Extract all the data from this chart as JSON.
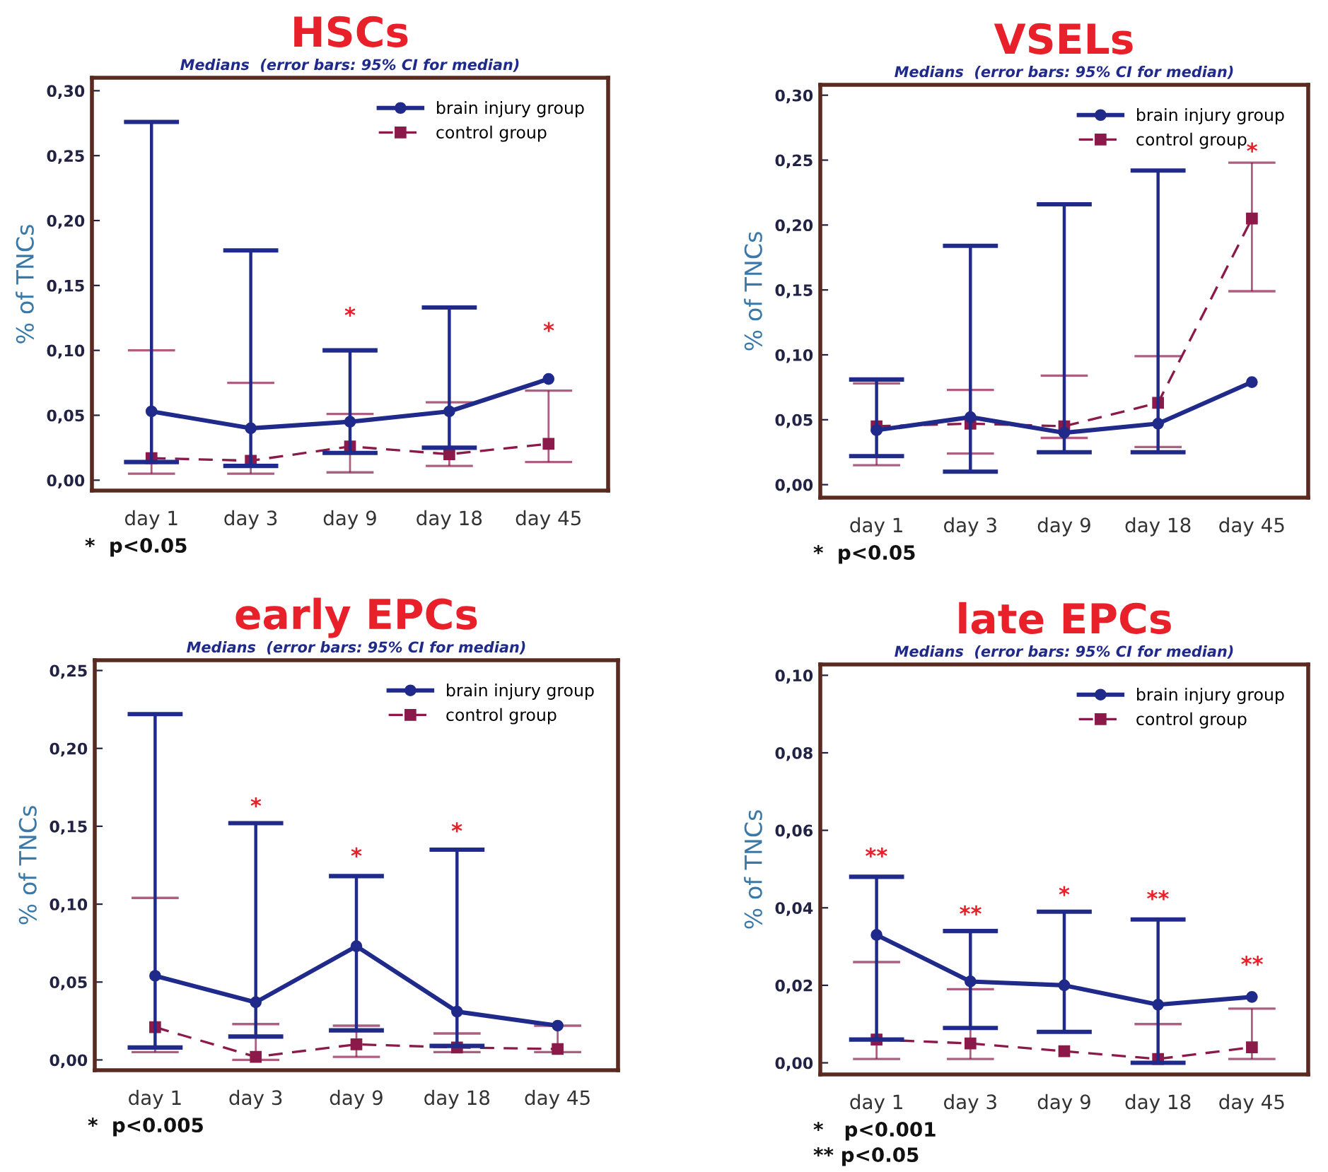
{
  "chart_data": [
    {
      "type": "line",
      "title": "HSCs",
      "subtitle": "Medians  (error bars: 95% CI for median)",
      "ylabel": "% of TNCs",
      "categories": [
        "day 1",
        "day 3",
        "day 9",
        "day 18",
        "day 45"
      ],
      "series": [
        {
          "name": "brain injury group",
          "color": "#1f2a8a",
          "marker": "circle",
          "line_style": "solid",
          "values": [
            0.053,
            0.04,
            0.045,
            0.053,
            0.078
          ],
          "errors": [
            [
              0.014,
              0.276
            ],
            [
              0.011,
              0.177
            ],
            [
              0.021,
              0.1
            ],
            [
              0.025,
              0.133
            ],
            null
          ]
        },
        {
          "name": "control group",
          "color": "#8b1a4a",
          "marker": "square",
          "line_style": "dashed",
          "values": [
            0.017,
            0.015,
            0.026,
            0.02,
            0.028
          ],
          "errors": [
            [
              0.005,
              0.1
            ],
            [
              0.005,
              0.075
            ],
            [
              0.006,
              0.051
            ],
            [
              0.011,
              0.06
            ],
            [
              0.014,
              0.069
            ]
          ]
        }
      ],
      "ylim": [
        -0.008,
        0.31
      ],
      "yticks": [
        {
          "value": 0,
          "label": "0,00"
        },
        {
          "value": 0.05,
          "label": "0,05"
        },
        {
          "value": 0.1,
          "label": "0,10"
        },
        {
          "value": 0.15,
          "label": "0,15"
        },
        {
          "value": 0.2,
          "label": "0,20"
        },
        {
          "value": 0.25,
          "label": "0,25"
        },
        {
          "value": 0.3,
          "label": "0,30"
        }
      ],
      "legend": "top right",
      "grid": false,
      "annotations": [
        "*",
        "*",
        "*  p<0.05"
      ]
    },
    {
      "type": "line",
      "title": "VSELs",
      "subtitle": "Medians  (error bars: 95% CI for median)",
      "ylabel": "% of TNCs",
      "categories": [
        "day 1",
        "day 3",
        "day 9",
        "day 18",
        "day 45"
      ],
      "series": [
        {
          "name": "brain injury group",
          "color": "#1f2a8a",
          "marker": "circle",
          "line_style": "solid",
          "values": [
            0.042,
            0.052,
            0.04,
            0.047,
            0.079
          ],
          "errors": [
            [
              0.022,
              0.081
            ],
            [
              0.01,
              0.184
            ],
            [
              0.025,
              0.216
            ],
            [
              0.025,
              0.242
            ],
            null
          ]
        },
        {
          "name": "control group",
          "color": "#8b1a4a",
          "marker": "square",
          "line_style": "dashed",
          "values": [
            0.045,
            0.047,
            0.045,
            0.063,
            0.205
          ],
          "errors": [
            [
              0.015,
              0.078
            ],
            [
              0.024,
              0.073
            ],
            [
              0.036,
              0.084
            ],
            [
              0.029,
              0.099
            ],
            [
              0.149,
              0.248
            ]
          ]
        }
      ],
      "ylim": [
        -0.01,
        0.308
      ],
      "yticks": [
        {
          "value": 0,
          "label": "0,00"
        },
        {
          "value": 0.05,
          "label": "0,05"
        },
        {
          "value": 0.1,
          "label": "0,10"
        },
        {
          "value": 0.15,
          "label": "0,15"
        },
        {
          "value": 0.2,
          "label": "0,20"
        },
        {
          "value": 0.25,
          "label": "0,25"
        },
        {
          "value": 0.3,
          "label": "0,30"
        }
      ],
      "legend": "top right",
      "grid": false,
      "annotations": [
        "*",
        "*  p<0.05"
      ]
    },
    {
      "type": "line",
      "title": "early EPCs",
      "subtitle": "Medians  (error bars: 95% CI for median)",
      "ylabel": "% of TNCs",
      "categories": [
        "day 1",
        "day 3",
        "day 9",
        "day 18",
        "day 45"
      ],
      "series": [
        {
          "name": "brain injury group",
          "color": "#1f2a8a",
          "marker": "circle",
          "line_style": "solid",
          "values": [
            0.054,
            0.037,
            0.073,
            0.031,
            0.022
          ],
          "errors": [
            [
              0.008,
              0.222
            ],
            [
              0.015,
              0.152
            ],
            [
              0.019,
              0.118
            ],
            [
              0.009,
              0.135
            ],
            null
          ]
        },
        {
          "name": "control group",
          "color": "#8b1a4a",
          "marker": "square",
          "line_style": "dashed",
          "values": [
            0.021,
            0.002,
            0.01,
            0.008,
            0.007
          ],
          "errors": [
            [
              0.005,
              0.104
            ],
            [
              0.0,
              0.023
            ],
            [
              0.002,
              0.022
            ],
            [
              0.005,
              0.017
            ],
            [
              0.005,
              0.022
            ]
          ]
        }
      ],
      "ylim": [
        -0.0066,
        0.2566
      ],
      "yticks": [
        {
          "value": 0,
          "label": "0,00"
        },
        {
          "value": 0.05,
          "label": "0,05"
        },
        {
          "value": 0.1,
          "label": "0,10"
        },
        {
          "value": 0.15,
          "label": "0,15"
        },
        {
          "value": 0.2,
          "label": "0,20"
        },
        {
          "value": 0.25,
          "label": "0,25"
        }
      ],
      "legend": "top right",
      "grid": false,
      "annotations": [
        "*",
        "*",
        "*",
        "*  p<0.005"
      ]
    },
    {
      "type": "line",
      "title": "late EPCs",
      "subtitle": "Medians  (error bars: 95% CI for median)",
      "ylabel": "% of TNCs",
      "categories": [
        "day 1",
        "day 3",
        "day 9",
        "day 18",
        "day 45"
      ],
      "series": [
        {
          "name": "brain injury group",
          "color": "#1f2a8a",
          "marker": "circle",
          "line_style": "solid",
          "values": [
            0.033,
            0.021,
            0.02,
            0.015,
            0.017
          ],
          "errors": [
            [
              0.006,
              0.048
            ],
            [
              0.009,
              0.034
            ],
            [
              0.008,
              0.039
            ],
            [
              0.0,
              0.037
            ],
            null
          ]
        },
        {
          "name": "control group",
          "color": "#8b1a4a",
          "marker": "square",
          "line_style": "dashed",
          "values": [
            0.006,
            0.005,
            0.003,
            0.001,
            0.004
          ],
          "errors": [
            [
              0.001,
              0.026
            ],
            [
              0.001,
              0.019
            ],
            null,
            [
              0.0,
              0.01
            ],
            [
              0.001,
              0.014
            ]
          ]
        }
      ],
      "ylim": [
        -0.003,
        0.1028
      ],
      "yticks": [
        {
          "value": 0,
          "label": "0,00"
        },
        {
          "value": 0.02,
          "label": "0,02"
        },
        {
          "value": 0.04,
          "label": "0,04"
        },
        {
          "value": 0.06,
          "label": "0,06"
        },
        {
          "value": 0.08,
          "label": "0,08"
        },
        {
          "value": 0.1,
          "label": "0,10"
        }
      ],
      "legend": "top right",
      "grid": false,
      "annotations": [
        "**",
        "**",
        "*",
        "**",
        "**",
        "*   p<0.001",
        "** p<0.05"
      ]
    }
  ]
}
